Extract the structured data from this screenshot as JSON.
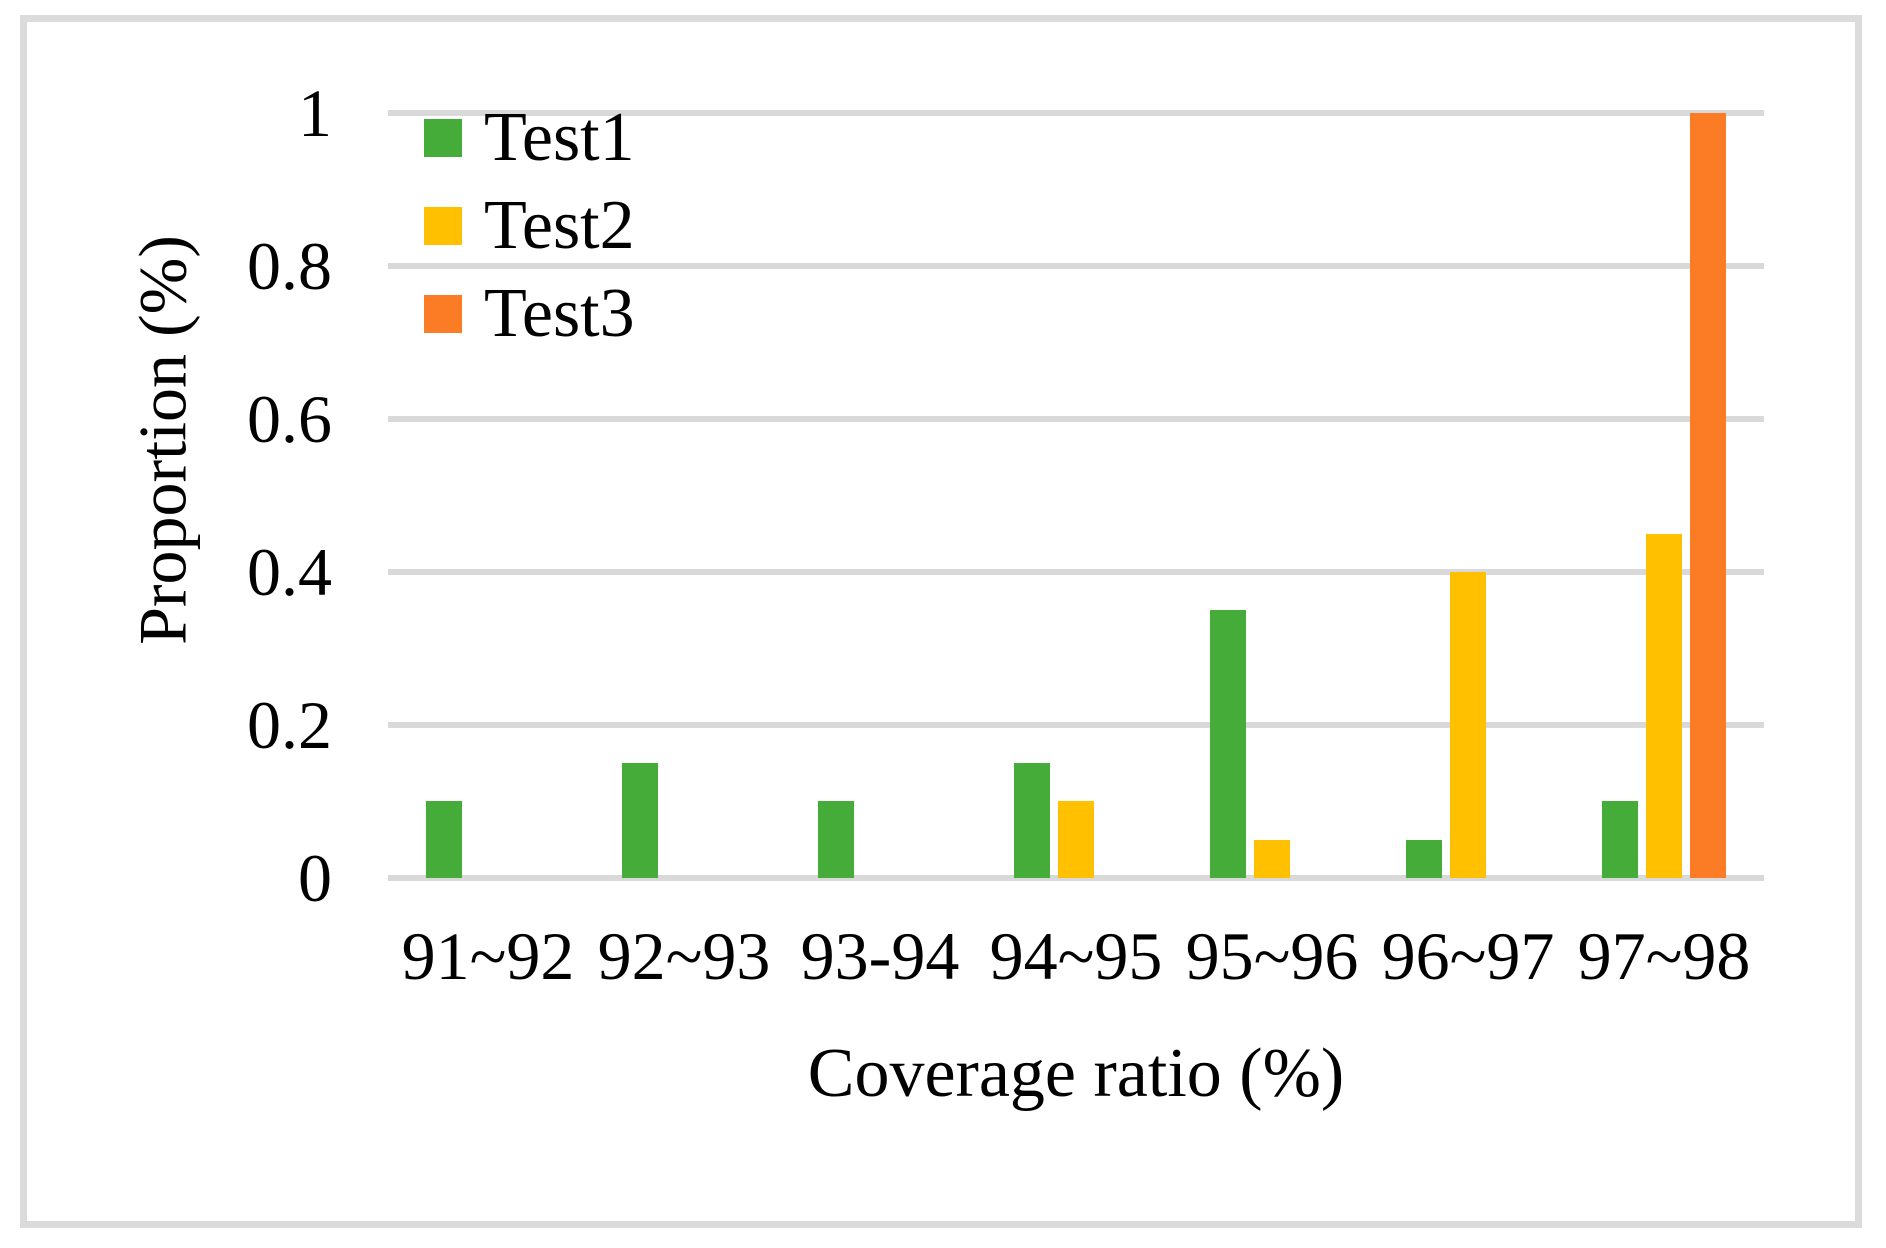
{
  "chart_data": {
    "type": "bar",
    "title": "",
    "xlabel": "Coverage ratio (%)",
    "ylabel": "Proportion (%)",
    "categories": [
      "91~92",
      "92~93",
      "93-94",
      "94~95",
      "95~96",
      "96~97",
      "97~98"
    ],
    "series": [
      {
        "name": "Test1",
        "color": "#45AC3A",
        "values": [
          0.1,
          0.15,
          0.1,
          0.15,
          0.35,
          0.05,
          0.1
        ]
      },
      {
        "name": "Test2",
        "color": "#FFC000",
        "values": [
          0,
          0,
          0,
          0.1,
          0.05,
          0.4,
          0.45
        ]
      },
      {
        "name": "Test3",
        "color": "#FC7C25",
        "values": [
          0,
          0,
          0,
          0,
          0,
          0,
          1.0
        ]
      }
    ],
    "ylim": [
      0,
      1
    ],
    "yticks": [
      0,
      0.2,
      0.4,
      0.6,
      0.8,
      1
    ],
    "ytick_labels": [
      "0",
      "0.2",
      "0.4",
      "0.6",
      "0.8",
      "1"
    ],
    "grid": true,
    "gridline_color": "#D9D9D9",
    "frame_color": "#DBDBDB",
    "background": "#FFFFFF",
    "legend_position": "top-left-inside"
  }
}
